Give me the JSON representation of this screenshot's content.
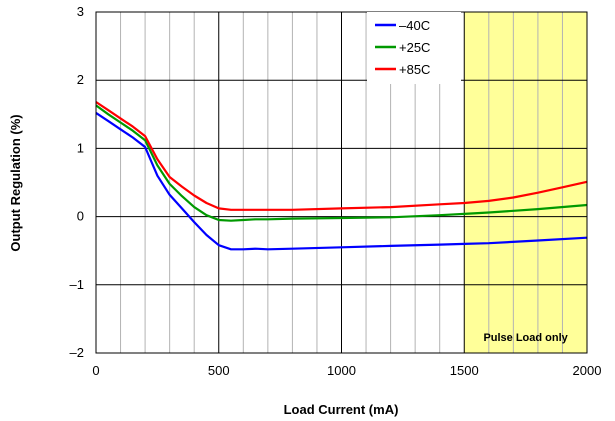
{
  "chart_data": {
    "type": "line",
    "title": "",
    "xlabel": "Load Current (mA)",
    "ylabel": "Output Regulation (%)",
    "xlim": [
      0,
      2000
    ],
    "ylim": [
      -2,
      3
    ],
    "x_ticks": [
      0,
      500,
      1000,
      1500,
      2000
    ],
    "x_tick_labels": [
      "0",
      "500",
      "1000",
      "1500",
      "2000"
    ],
    "y_ticks": [
      -2,
      -1,
      0,
      1,
      2,
      3
    ],
    "y_tick_labels": [
      "–2",
      "–1",
      "0",
      "1",
      "2",
      "3"
    ],
    "x_minor_step": 100,
    "grid": true,
    "legend_position": "top-right",
    "shaded_region": {
      "x": [
        1500,
        2000
      ],
      "color": "#ffff99",
      "label": "Pulse Load only"
    },
    "series": [
      {
        "name": "–40C",
        "color": "#0000ff",
        "x": [
          0,
          50,
          100,
          150,
          200,
          250,
          300,
          350,
          400,
          450,
          500,
          550,
          600,
          650,
          700,
          800,
          1000,
          1200,
          1400,
          1500,
          1600,
          1800,
          2000
        ],
        "y": [
          1.52,
          1.4,
          1.28,
          1.16,
          1.02,
          0.6,
          0.32,
          0.12,
          -0.08,
          -0.27,
          -0.42,
          -0.48,
          -0.48,
          -0.47,
          -0.48,
          -0.47,
          -0.45,
          -0.43,
          -0.41,
          -0.4,
          -0.39,
          -0.35,
          -0.31
        ]
      },
      {
        "name": "+25C",
        "color": "#009900",
        "x": [
          0,
          50,
          100,
          150,
          200,
          250,
          300,
          350,
          400,
          450,
          500,
          550,
          600,
          650,
          700,
          800,
          1000,
          1200,
          1400,
          1500,
          1600,
          1800,
          2000
        ],
        "y": [
          1.63,
          1.5,
          1.38,
          1.26,
          1.12,
          0.75,
          0.48,
          0.3,
          0.14,
          0.02,
          -0.05,
          -0.06,
          -0.05,
          -0.04,
          -0.04,
          -0.03,
          -0.02,
          -0.01,
          0.02,
          0.04,
          0.06,
          0.11,
          0.17
        ]
      },
      {
        "name": "+85C",
        "color": "#ff0000",
        "x": [
          0,
          50,
          100,
          150,
          200,
          250,
          300,
          350,
          400,
          450,
          500,
          550,
          600,
          650,
          700,
          800,
          1000,
          1200,
          1400,
          1500,
          1600,
          1700,
          1800,
          1900,
          2000
        ],
        "y": [
          1.68,
          1.56,
          1.44,
          1.32,
          1.18,
          0.84,
          0.58,
          0.44,
          0.31,
          0.2,
          0.12,
          0.1,
          0.1,
          0.1,
          0.1,
          0.1,
          0.12,
          0.14,
          0.18,
          0.2,
          0.23,
          0.28,
          0.35,
          0.43,
          0.51
        ]
      }
    ]
  }
}
